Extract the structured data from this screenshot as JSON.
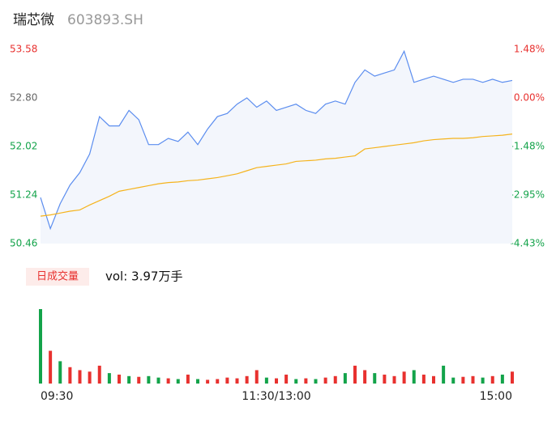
{
  "header": {
    "name": "瑞芯微",
    "code": "603893.SH"
  },
  "chart_data": [
    {
      "type": "line",
      "categories": [
        "09:30",
        null,
        null,
        null,
        null,
        null,
        null,
        null,
        null,
        null,
        null,
        null,
        null,
        null,
        null,
        null,
        null,
        null,
        null,
        null,
        null,
        null,
        null,
        null,
        "11:30/13:00",
        null,
        null,
        null,
        null,
        null,
        null,
        null,
        null,
        null,
        null,
        null,
        null,
        null,
        null,
        null,
        null,
        null,
        null,
        null,
        null,
        null,
        null,
        null,
        "15:00"
      ],
      "series": [
        {
          "name": "price",
          "color": "#5b8def",
          "values": [
            51.2,
            50.7,
            51.1,
            51.4,
            51.6,
            51.9,
            52.5,
            52.35,
            52.35,
            52.6,
            52.45,
            52.05,
            52.05,
            52.15,
            52.1,
            52.25,
            52.05,
            52.3,
            52.5,
            52.55,
            52.7,
            52.8,
            52.65,
            52.75,
            52.6,
            52.65,
            52.7,
            52.6,
            52.55,
            52.7,
            52.75,
            52.7,
            53.05,
            53.25,
            53.15,
            53.2,
            53.25,
            53.55,
            53.05,
            53.1,
            53.15,
            53.1,
            53.05,
            53.1,
            53.1,
            53.05,
            53.1,
            53.05,
            53.08
          ]
        },
        {
          "name": "average",
          "color": "#f5b31c",
          "values": [
            50.9,
            50.92,
            50.95,
            50.98,
            51.0,
            51.08,
            51.15,
            51.22,
            51.3,
            51.33,
            51.36,
            51.39,
            51.42,
            51.44,
            51.45,
            51.47,
            51.48,
            51.5,
            51.52,
            51.55,
            51.58,
            51.63,
            51.68,
            51.7,
            51.72,
            51.74,
            51.78,
            51.79,
            51.8,
            51.82,
            51.83,
            51.85,
            51.87,
            51.98,
            52.0,
            52.02,
            52.04,
            52.06,
            52.08,
            52.11,
            52.13,
            52.14,
            52.15,
            52.15,
            52.16,
            52.18,
            52.19,
            52.2,
            52.22
          ]
        }
      ],
      "ylim": [
        50.46,
        53.58
      ],
      "yticks": [
        50.46,
        51.24,
        52.02,
        {
          "value": 52.8,
          "label": "52.80"
        },
        53.58
      ],
      "y2lim": [
        -4.43,
        1.48
      ],
      "y2ticks": [
        {
          "value": -4.43,
          "label": "-4.43%"
        },
        {
          "value": -2.95,
          "label": "-2.95%"
        },
        {
          "value": -1.48,
          "label": "-1.48%"
        },
        {
          "value": 0,
          "label": "0.00%"
        },
        {
          "value": 1.48,
          "label": "1.48%"
        }
      ],
      "up_color": "#e8312f",
      "down_color": "#13a34a",
      "flat_color": "#666666",
      "area_color": "#f3f6fc"
    },
    {
      "type": "bar",
      "legend": "日成交量",
      "annotation": "vol: 3.97万手",
      "values": [
        5000,
        2200,
        1500,
        1100,
        900,
        800,
        1200,
        700,
        600,
        500,
        450,
        500,
        400,
        350,
        300,
        600,
        300,
        250,
        300,
        400,
        350,
        500,
        900,
        400,
        350,
        600,
        300,
        350,
        300,
        400,
        500,
        700,
        1200,
        900,
        700,
        600,
        500,
        800,
        900,
        600,
        500,
        1200,
        400,
        450,
        500,
        400,
        500,
        600,
        800
      ],
      "colors": [
        "#13a34a",
        "#e8312f",
        "#13a34a",
        "#e8312f",
        "#e8312f",
        "#e8312f",
        "#e8312f",
        "#13a34a",
        "#e8312f",
        "#13a34a",
        "#e8312f",
        "#13a34a",
        "#13a34a",
        "#e8312f",
        "#13a34a",
        "#e8312f",
        "#13a34a",
        "#e8312f",
        "#e8312f",
        "#e8312f",
        "#e8312f",
        "#e8312f",
        "#e8312f",
        "#13a34a",
        "#e8312f",
        "#e8312f",
        "#13a34a",
        "#e8312f",
        "#13a34a",
        "#e8312f",
        "#e8312f",
        "#13a34a",
        "#e8312f",
        "#e8312f",
        "#13a34a",
        "#e8312f",
        "#e8312f",
        "#e8312f",
        "#13a34a",
        "#e8312f",
        "#e8312f",
        "#13a34a",
        "#13a34a",
        "#e8312f",
        "#e8312f",
        "#13a34a",
        "#e8312f",
        "#13a34a",
        "#e8312f"
      ],
      "ylim": [
        0,
        5000
      ],
      "legend_color": "#e8312f",
      "legend_bg": "#fdecea"
    }
  ]
}
